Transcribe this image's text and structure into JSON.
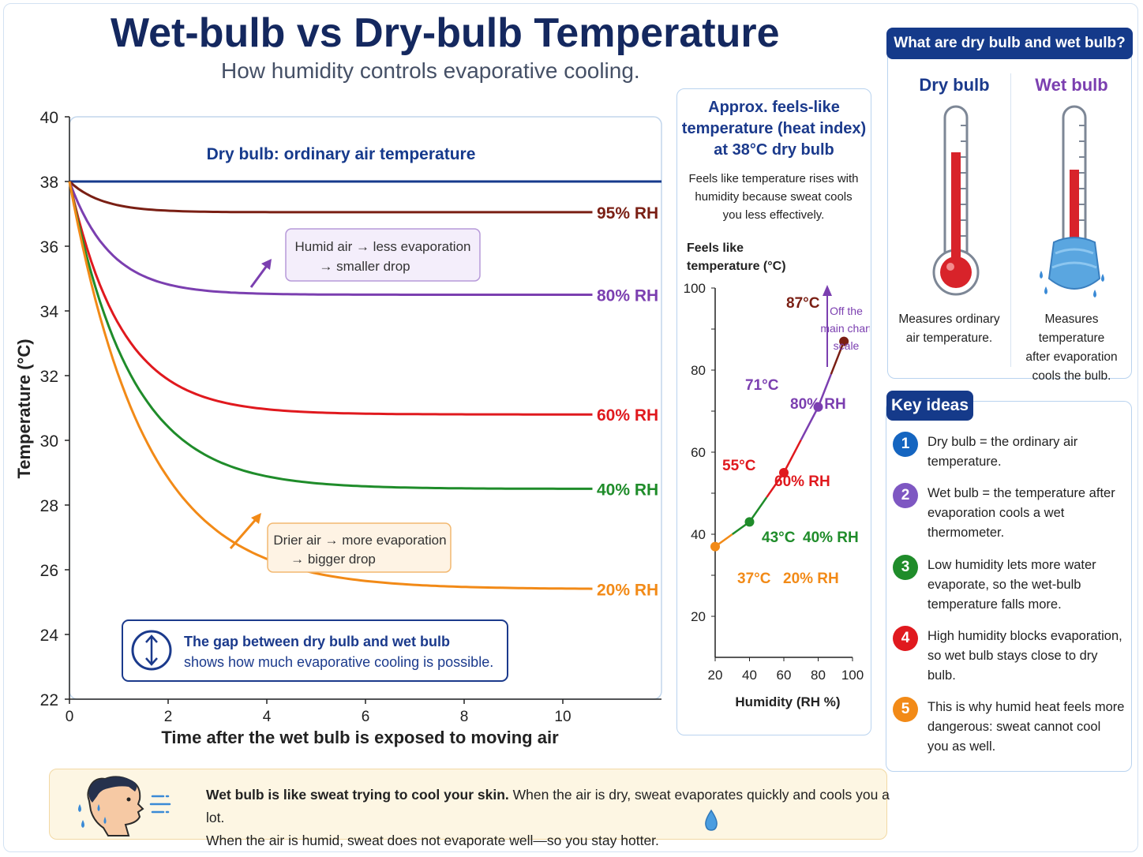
{
  "title": "Wet-bulb vs Dry-bulb Temperature",
  "subtitle": "How humidity controls evaporative cooling.",
  "chart_data": [
    {
      "type": "line",
      "title": "",
      "xlabel": "Time after the wet bulb is exposed to moving air",
      "ylabel": "Temperature (°C)",
      "xlim": [
        0,
        12
      ],
      "ylim": [
        22,
        40
      ],
      "x_ticks": [
        0,
        2,
        4,
        6,
        8,
        10
      ],
      "y_ticks": [
        22,
        24,
        26,
        28,
        30,
        32,
        34,
        36,
        38,
        40
      ],
      "dry_bulb": {
        "label": "Dry bulb: ordinary air temperature",
        "value": 38,
        "color": "#163a8c"
      },
      "series": [
        {
          "name": "95% RH",
          "start": 38,
          "final": 37.05,
          "color": "#7a1f14"
        },
        {
          "name": "80% RH",
          "start": 38,
          "final": 34.5,
          "color": "#7b3fb0"
        },
        {
          "name": "60% RH",
          "start": 38,
          "final": 30.8,
          "color": "#e0191e"
        },
        {
          "name": "40% RH",
          "start": 38,
          "final": 28.5,
          "color": "#1f8c2a"
        },
        {
          "name": "20% RH",
          "start": 38,
          "final": 25.4,
          "color": "#f28a17"
        }
      ],
      "annotations": [
        {
          "line1": "Humid air → less evaporation",
          "line2": "→ smaller drop",
          "color": "#7b3fb0"
        },
        {
          "line1": "Drier air → more evaporation",
          "line2": "→ bigger drop",
          "color": "#f28a17"
        }
      ],
      "callout": {
        "line1": "The gap between dry bulb and wet bulb",
        "line2": "shows how much evaporative cooling is possible.",
        "icon": "up-down-arrow-icon"
      }
    },
    {
      "type": "line",
      "title": "Approx. feels-like temperature (heat index) at 38°C dry bulb",
      "description": "Feels like temperature rises with humidity because sweat cools you less effectively.",
      "xlabel": "Humidity (RH %)",
      "ylabel": "Feels like temperature (°C)",
      "xlim": [
        20,
        100
      ],
      "ylim": [
        10,
        100
      ],
      "x_ticks": [
        20,
        40,
        60,
        80,
        100
      ],
      "y_ticks": [
        20,
        40,
        60,
        80,
        100
      ],
      "note": [
        "Off the",
        "main chart",
        "scale"
      ],
      "points": [
        {
          "rh": 20,
          "feels": 37,
          "label": "37°C",
          "rh_label": "20% RH",
          "color": "#f28a17"
        },
        {
          "rh": 40,
          "feels": 43,
          "label": "43°C",
          "rh_label": "40% RH",
          "color": "#1f8c2a"
        },
        {
          "rh": 60,
          "feels": 55,
          "label": "55°C",
          "rh_label": "60% RH",
          "color": "#e0191e"
        },
        {
          "rh": 80,
          "feels": 71,
          "label": "71°C",
          "rh_label": "80% RH",
          "color": "#7b3fb0"
        },
        {
          "rh": 95,
          "feels": 87,
          "label": "87°C",
          "rh_label": "",
          "color": "#7a1f14"
        }
      ]
    }
  ],
  "info_panel": {
    "header": "What are dry bulb and wet bulb?",
    "dry": {
      "title": "Dry bulb",
      "desc": [
        "Measures ordinary",
        "air temperature."
      ],
      "fill_fraction": 0.83
    },
    "wet": {
      "title": "Wet bulb",
      "desc": [
        "Measures temperature",
        "after evaporation",
        "cools the bulb."
      ],
      "fill_fraction": 0.6
    }
  },
  "key_ideas": {
    "header": "Key ideas",
    "items": [
      {
        "num": "1",
        "color": "#1565c0",
        "text": "Dry bulb = the ordinary air temperature."
      },
      {
        "num": "2",
        "color": "#7e57c2",
        "text": "Wet bulb = the temperature after evaporation cools a wet thermometer."
      },
      {
        "num": "3",
        "color": "#1f8c2a",
        "text": "Low humidity lets more water evaporate, so the wet-bulb temperature falls more."
      },
      {
        "num": "4",
        "color": "#e0191e",
        "text": "High humidity blocks evaporation, so wet bulb stays close to dry bulb."
      },
      {
        "num": "5",
        "color": "#f28a17",
        "text": "This is why humid heat feels more dangerous: sweat cannot cool you as well."
      }
    ]
  },
  "bottom_note": {
    "bold": "Wet bulb is like sweat trying to cool your skin.",
    "text1": " When the air is dry, sweat evaporates quickly and cools you a lot.",
    "text2": "When the air is humid, sweat does not evaporate well—so you stay hotter."
  }
}
